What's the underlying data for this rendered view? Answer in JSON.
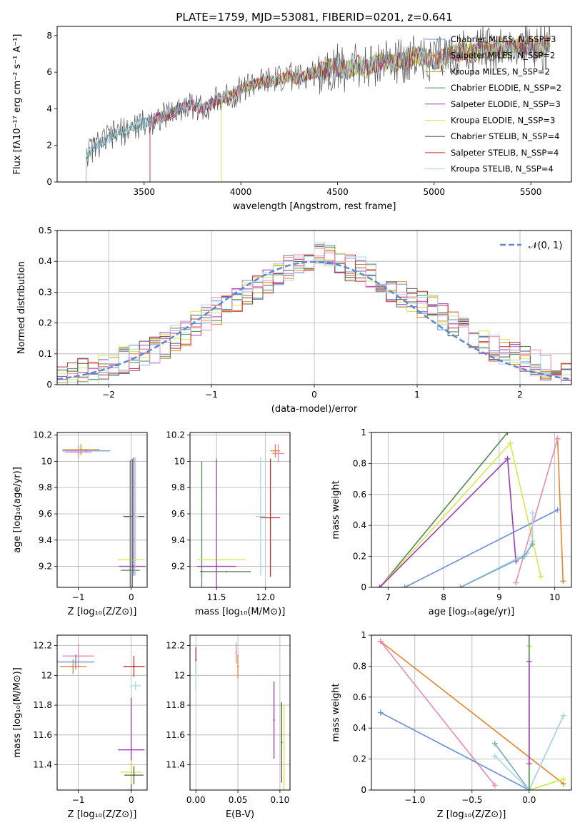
{
  "title": "PLATE=1759, MJD=53081, FIBERID=0201, z=0.641",
  "palette": [
    "#6a8fd6",
    "#e3852e",
    "#c79a3a",
    "#4f8a50",
    "#9b3cb8",
    "#d8e84a",
    "#555555",
    "#b83030",
    "#a8d8e8",
    "#e88ab8",
    "#c6e83a",
    "#79a9c0"
  ],
  "chart_data": [
    {
      "id": "spectrum",
      "type": "line",
      "title": "PLATE=1759, MJD=53081, FIBERID=0201, z=0.641",
      "xlabel": "wavelength [Angstrom, rest frame]",
      "ylabel": "Flux [fλ10⁻¹⁷ erg cm⁻² s⁻¹ A⁻¹]",
      "xlim": [
        3050,
        5710
      ],
      "ylim": [
        0,
        8.5
      ],
      "xticks": [
        3500,
        4000,
        4500,
        5000,
        5500
      ],
      "yticks": [
        0,
        2,
        4,
        6,
        8
      ],
      "grid": false,
      "legend": "top-right",
      "series": [
        {
          "name": "Chabrier MILES, N_SSP=3",
          "color": "#6a8fd6"
        },
        {
          "name": "Salpeter MILES, N_SSP=2",
          "color": "#e3852e"
        },
        {
          "name": "Kroupa MILES, N_SSP=2",
          "color": "#c79a3a"
        },
        {
          "name": "Chabrier ELODIE, N_SSP=2",
          "color": "#4f8a50"
        },
        {
          "name": "Salpeter ELODIE, N_SSP=3",
          "color": "#9b3cb8"
        },
        {
          "name": "Kroupa ELODIE, N_SSP=3",
          "color": "#d8e84a"
        },
        {
          "name": "Chabrier STELIB, N_SSP=4",
          "color": "#555555"
        },
        {
          "name": "Salpeter STELIB, N_SSP=4",
          "color": "#b83030"
        },
        {
          "name": "Kroupa STELIB, N_SSP=4",
          "color": "#a8d8e8"
        }
      ],
      "data_x": [
        3200,
        3250,
        3300,
        3350,
        3400,
        3450,
        3500,
        3550,
        3600,
        3650,
        3700,
        3750,
        3800,
        3850,
        3900,
        3950,
        4000,
        4050,
        4100,
        4150,
        4200,
        4250,
        4300,
        4350,
        4400,
        4450,
        4500,
        4550,
        4600,
        4650,
        4700,
        4750,
        4800,
        4850,
        4900,
        4950,
        5000,
        5050,
        5100,
        5150,
        5200,
        5250,
        5300,
        5350,
        5400,
        5450,
        5500,
        5550,
        5600
      ],
      "data_y": [
        1.5,
        2.0,
        2.3,
        2.6,
        2.8,
        3.0,
        3.2,
        3.4,
        3.6,
        3.8,
        4.1,
        4.2,
        4.0,
        4.3,
        4.6,
        4.7,
        5.1,
        5.3,
        5.4,
        5.5,
        5.6,
        5.8,
        5.6,
        5.9,
        6.0,
        6.2,
        6.3,
        6.1,
        6.4,
        6.2,
        6.5,
        6.6,
        6.5,
        6.7,
        6.9,
        6.8,
        6.6,
        6.8,
        7.0,
        7.2,
        7.0,
        7.3,
        7.1,
        7.4,
        7.2,
        7.5,
        7.4,
        7.3,
        7.6
      ]
    },
    {
      "id": "residuals",
      "type": "line",
      "xlabel": "(data-model)/error",
      "ylabel": "Normed distribution",
      "xlim": [
        -2.5,
        2.5
      ],
      "ylim": [
        0,
        0.5
      ],
      "xticks": [
        -2,
        -1,
        0,
        1,
        2
      ],
      "yticks": [
        0.0,
        0.1,
        0.2,
        0.3,
        0.4,
        0.5
      ],
      "grid": true,
      "legend": "top-right",
      "series": [
        {
          "name": "𝒩(0, 1)",
          "color": "#5b8ad4",
          "style": "dashed"
        }
      ],
      "bin_centers": [
        -2.45,
        -2.35,
        -2.25,
        -2.15,
        -2.05,
        -1.95,
        -1.85,
        -1.75,
        -1.65,
        -1.55,
        -1.45,
        -1.35,
        -1.25,
        -1.15,
        -1.05,
        -0.95,
        -0.85,
        -0.75,
        -0.65,
        -0.55,
        -0.45,
        -0.35,
        -0.25,
        -0.15,
        -0.05,
        0.05,
        0.15,
        0.25,
        0.35,
        0.45,
        0.55,
        0.65,
        0.75,
        0.85,
        0.95,
        1.05,
        1.15,
        1.25,
        1.35,
        1.45,
        1.55,
        1.65,
        1.75,
        1.85,
        1.95,
        2.05,
        2.15,
        2.25,
        2.35,
        2.45
      ],
      "hist_values": [
        0.02,
        0.03,
        0.05,
        0.04,
        0.05,
        0.06,
        0.08,
        0.09,
        0.1,
        0.11,
        0.13,
        0.15,
        0.17,
        0.2,
        0.22,
        0.24,
        0.26,
        0.28,
        0.3,
        0.31,
        0.33,
        0.35,
        0.38,
        0.4,
        0.41,
        0.42,
        0.41,
        0.4,
        0.38,
        0.37,
        0.35,
        0.34,
        0.31,
        0.29,
        0.27,
        0.26,
        0.25,
        0.22,
        0.2,
        0.18,
        0.16,
        0.14,
        0.12,
        0.11,
        0.1,
        0.08,
        0.07,
        0.06,
        0.05,
        0.04
      ]
    },
    {
      "id": "age-vs-Z",
      "type": "scatter",
      "xlabel": "Z [log₁₀(Z/Z⊙)]",
      "ylabel": "age  [log₁₀(age/yr)]",
      "xlim": [
        -1.4,
        0.3
      ],
      "ylim": [
        9.04,
        10.22
      ],
      "xticks": [
        -1,
        0
      ],
      "yticks": [
        9.2,
        9.4,
        9.6,
        9.8,
        10.0,
        10.2
      ],
      "grid": true,
      "points": [
        {
          "x": -0.85,
          "y": 10.08,
          "xerr": 0.45,
          "yerr": 0.0,
          "color": "#6a8fd6"
        },
        {
          "x": -0.95,
          "y": 10.09,
          "xerr": 0.35,
          "yerr": 0.04,
          "color": "#e3852e"
        },
        {
          "x": -1.0,
          "y": 10.07,
          "xerr": 0.25,
          "yerr": 0.05,
          "color": "#e88ab8"
        },
        {
          "x": 0.05,
          "y": 9.58,
          "xerr": 0.2,
          "yerr": 0.45,
          "color": "#555555"
        },
        {
          "x": 0.0,
          "y": 9.25,
          "xerr": 0.25,
          "yerr": 0.0,
          "color": "#d8e84a"
        },
        {
          "x": 0.02,
          "y": 9.2,
          "xerr": 0.25,
          "yerr": 0.82,
          "color": "#9b3cb8"
        },
        {
          "x": -0.02,
          "y": 9.17,
          "xerr": 0.18,
          "yerr": 0.84,
          "color": "#4f8a50"
        },
        {
          "x": 0.08,
          "y": 9.58,
          "xerr": 0.05,
          "yerr": 0.45,
          "color": "#a8d8e8"
        }
      ]
    },
    {
      "id": "age-vs-mass",
      "type": "scatter",
      "xlabel": "mass [log₁₀(M/M⊙)]",
      "ylabel": "",
      "xlim": [
        11.23,
        12.25
      ],
      "ylim": [
        9.04,
        10.22
      ],
      "xticks": [
        11.5,
        12.0
      ],
      "yticks": [
        9.2,
        9.4,
        9.6,
        9.8,
        10.0,
        10.2
      ],
      "grid": true,
      "points": [
        {
          "x": 11.35,
          "y": 9.16,
          "xerr": 0.02,
          "yerr": 0.84,
          "color": "#4f8a50"
        },
        {
          "x": 11.55,
          "y": 9.25,
          "xerr": 0.25,
          "yerr": 0.0,
          "color": "#d8e84a"
        },
        {
          "x": 11.5,
          "y": 9.2,
          "xerr": 0.2,
          "yerr": 0.82,
          "color": "#9b3cb8"
        },
        {
          "x": 11.6,
          "y": 9.16,
          "xerr": 0.25,
          "yerr": 0.0,
          "color": "#4f8a50"
        },
        {
          "x": 11.95,
          "y": 9.58,
          "xerr": 0.05,
          "yerr": 0.45,
          "color": "#a8d8e8"
        },
        {
          "x": 12.05,
          "y": 9.57,
          "xerr": 0.1,
          "yerr": 0.45,
          "color": "#b83030"
        },
        {
          "x": 12.1,
          "y": 10.08,
          "xerr": 0.05,
          "yerr": 0.05,
          "color": "#e3852e"
        },
        {
          "x": 12.13,
          "y": 10.06,
          "xerr": 0.06,
          "yerr": 0.07,
          "color": "#e88ab8"
        }
      ]
    },
    {
      "id": "mass-weight-vs-age",
      "type": "line",
      "xlabel": "age  [log₁₀(age/yr)]",
      "ylabel": "mass weight",
      "xlim": [
        6.7,
        10.3
      ],
      "ylim": [
        0,
        1
      ],
      "xticks": [
        7,
        8,
        9,
        10
      ],
      "yticks": [
        0.0,
        0.2,
        0.4,
        0.6,
        0.8,
        1.0
      ],
      "grid": true,
      "series": [
        {
          "color": "#4f8a50",
          "x": [
            6.85,
            9.15
          ],
          "y": [
            0.0,
            1.0
          ]
        },
        {
          "color": "#d8e84a",
          "x": [
            6.85,
            9.2,
            9.75
          ],
          "y": [
            0.0,
            0.93,
            0.07
          ]
        },
        {
          "color": "#9b3cb8",
          "x": [
            6.85,
            9.15,
            9.3
          ],
          "y": [
            0.0,
            0.83,
            0.17
          ]
        },
        {
          "color": "#6a8fd6",
          "x": [
            7.3,
            10.05
          ],
          "y": [
            0.0,
            0.5
          ]
        },
        {
          "color": "#e3852e",
          "x": [
            10.05,
            10.15
          ],
          "y": [
            0.96,
            0.04
          ]
        },
        {
          "color": "#e88ab8",
          "x": [
            9.3,
            10.05
          ],
          "y": [
            0.03,
            0.96
          ]
        },
        {
          "color": "#a8d8e8",
          "x": [
            8.3,
            9.5,
            9.6,
            9.6
          ],
          "y": [
            0.0,
            0.22,
            0.3,
            0.48
          ]
        },
        {
          "color": "#79a9c0",
          "x": [
            8.3,
            9.45,
            9.6
          ],
          "y": [
            0.0,
            0.2,
            0.28
          ]
        }
      ]
    },
    {
      "id": "mass-vs-Z",
      "type": "scatter",
      "xlabel": "Z [log₁₀(Z/Z⊙)]",
      "ylabel": "mass [log₁₀(M/M⊙)]",
      "xlim": [
        -1.4,
        0.3
      ],
      "ylim": [
        11.23,
        12.27
      ],
      "xticks": [
        -1,
        0
      ],
      "yticks": [
        11.4,
        11.6,
        11.8,
        12.0,
        12.2
      ],
      "grid": true,
      "points": [
        {
          "x": -1.0,
          "y": 12.13,
          "xerr": 0.3,
          "yerr": 0.08,
          "color": "#e88ab8"
        },
        {
          "x": -1.05,
          "y": 12.09,
          "xerr": 0.35,
          "yerr": 0.05,
          "color": "#6a8fd6"
        },
        {
          "x": -1.1,
          "y": 12.06,
          "xerr": 0.25,
          "yerr": 0.05,
          "color": "#e3852e"
        },
        {
          "x": 0.05,
          "y": 12.06,
          "xerr": 0.2,
          "yerr": 0.07,
          "color": "#b83030"
        },
        {
          "x": 0.08,
          "y": 11.93,
          "xerr": 0.1,
          "yerr": 0.03,
          "color": "#a8d8e8"
        },
        {
          "x": 0.0,
          "y": 11.5,
          "xerr": 0.25,
          "yerr": 0.35,
          "color": "#9b3cb8"
        },
        {
          "x": 0.0,
          "y": 11.35,
          "xerr": 0.2,
          "yerr": 0.08,
          "color": "#d8e84a"
        },
        {
          "x": 0.05,
          "y": 11.33,
          "xerr": 0.18,
          "yerr": 0.06,
          "color": "#555555"
        }
      ]
    },
    {
      "id": "mass-vs-ebv",
      "type": "scatter",
      "xlabel": "E(B-V)",
      "ylabel": "",
      "xlim": [
        -0.007,
        0.112
      ],
      "ylim": [
        11.23,
        12.27
      ],
      "xticks": [
        0.0,
        0.05,
        0.1
      ],
      "yticks": [
        11.4,
        11.6,
        11.8,
        12.0,
        12.2
      ],
      "grid": true,
      "points": [
        {
          "x": 0.0,
          "y": 12.1,
          "xerr": 0.0,
          "yerr": 0.09,
          "color": "#b83030"
        },
        {
          "x": 0.0,
          "y": 12.0,
          "xerr": 0.0,
          "yerr": 0.1,
          "color": "#a8d8e8"
        },
        {
          "x": 0.048,
          "y": 12.15,
          "xerr": 0.0,
          "yerr": 0.07,
          "color": "#e88ab8"
        },
        {
          "x": 0.05,
          "y": 12.06,
          "xerr": 0.0,
          "yerr": 0.08,
          "color": "#e3852e"
        },
        {
          "x": 0.093,
          "y": 11.7,
          "xerr": 0.0,
          "yerr": 0.26,
          "color": "#9b3cb8"
        },
        {
          "x": 0.102,
          "y": 11.55,
          "xerr": 0.0,
          "yerr": 0.27,
          "color": "#555555"
        },
        {
          "x": 0.105,
          "y": 11.5,
          "xerr": 0.0,
          "yerr": 0.3,
          "color": "#d8e84a"
        }
      ]
    },
    {
      "id": "mass-weight-vs-Z",
      "type": "line",
      "xlabel": "Z [log₁₀(Z/Z⊙)]",
      "ylabel": "mass weight",
      "xlim": [
        -1.38,
        0.37
      ],
      "ylim": [
        0,
        1
      ],
      "xticks": [
        -1.0,
        -0.5,
        0.0
      ],
      "yticks": [
        0.0,
        0.2,
        0.4,
        0.6,
        0.8,
        1.0
      ],
      "grid": true,
      "series": [
        {
          "color": "#e3852e",
          "x": [
            -1.3,
            0.3
          ],
          "y": [
            0.96,
            0.04
          ]
        },
        {
          "color": "#e88ab8",
          "x": [
            -1.3,
            -0.3
          ],
          "y": [
            0.96,
            0.03
          ]
        },
        {
          "color": "#6a8fd6",
          "x": [
            -1.3,
            0.0
          ],
          "y": [
            0.5,
            0.0
          ]
        },
        {
          "color": "#c6e83a",
          "x": [
            0.0,
            0.0,
            0.0,
            0.3
          ],
          "y": [
            0.93,
            0.0,
            0.0,
            0.07
          ]
        },
        {
          "color": "#79a9c0",
          "x": [
            -0.3,
            0.0,
            0.3
          ],
          "y": [
            0.3,
            0.0,
            0.48
          ]
        },
        {
          "color": "#a8d8e8",
          "x": [
            -0.3,
            0.0,
            0.3
          ],
          "y": [
            0.22,
            0.0,
            0.48
          ]
        },
        {
          "color": "#4f8a50",
          "x": [
            0.0,
            0.0
          ],
          "y": [
            1.0,
            0.0
          ]
        },
        {
          "color": "#9b3cb8",
          "x": [
            0.0,
            0.0
          ],
          "y": [
            0.83,
            0.17
          ]
        }
      ]
    }
  ]
}
